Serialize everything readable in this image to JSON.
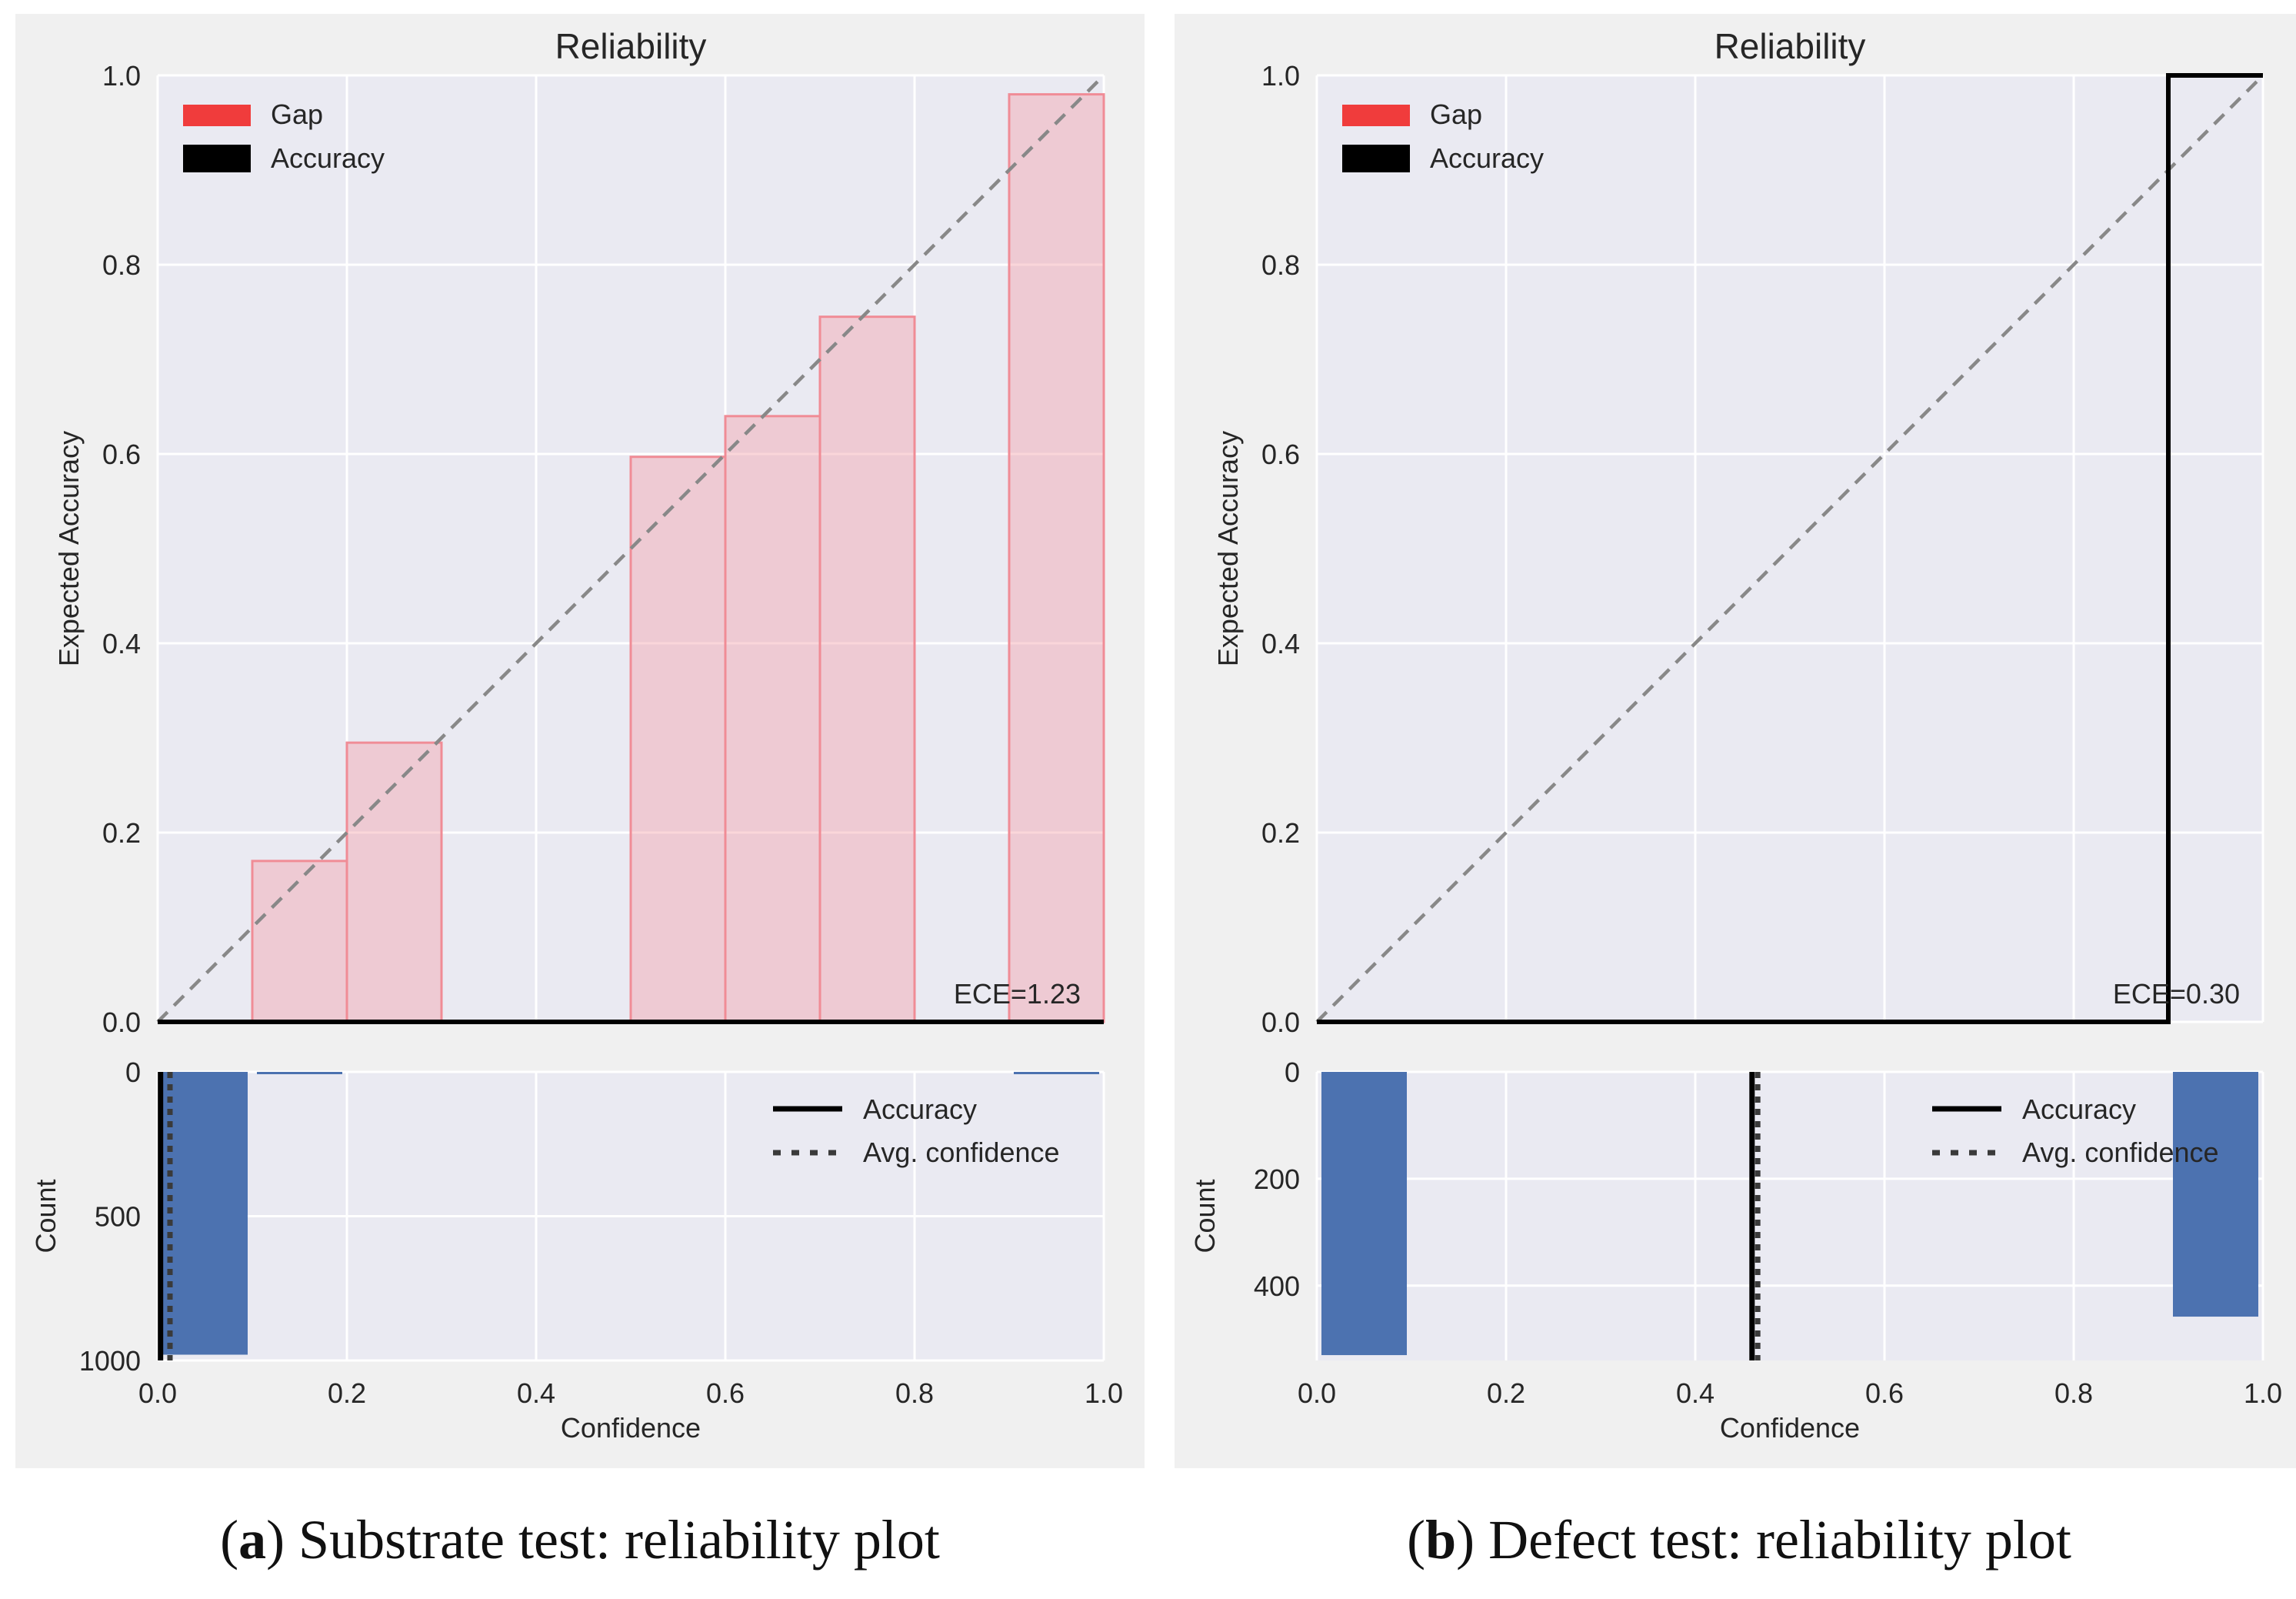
{
  "chart_data": [
    {
      "type": "bar",
      "title": "Reliability",
      "ylabel": "Expected Accuracy",
      "xlabel": "Confidence",
      "xlim": [
        0,
        1
      ],
      "ylim": [
        0,
        1
      ],
      "grid": true,
      "legend": [
        "Gap",
        "Accuracy"
      ],
      "legend_position": "top-left",
      "ece_label": "ECE=1.23",
      "yticks": [
        "0.0",
        "0.2",
        "0.4",
        "0.6",
        "0.8",
        "1.0"
      ],
      "bins": [
        0.0,
        0.1,
        0.2,
        0.3,
        0.4,
        0.5,
        0.6,
        0.7,
        0.8,
        0.9
      ],
      "bin_width": 0.1,
      "gap_values": [
        0,
        0.17,
        0.295,
        0,
        0,
        0.597,
        0.64,
        0.745,
        0,
        0.98
      ],
      "accuracy_values": [
        0,
        0,
        0,
        0,
        0,
        0,
        0,
        0,
        0,
        0
      ],
      "hist": {
        "ylabel": "Count",
        "inverted": true,
        "ylim": [
          0,
          1000
        ],
        "yticks": [
          "0",
          "500",
          "1000"
        ],
        "counts": [
          980,
          8,
          0,
          0,
          0,
          0,
          0,
          0,
          0,
          8
        ],
        "accuracy_line": 0.003,
        "avg_confidence_line": 0.013,
        "legend": [
          "Accuracy",
          "Avg. confidence"
        ],
        "legend_position": "top-right"
      },
      "xticks": [
        "0.0",
        "0.2",
        "0.4",
        "0.6",
        "0.8",
        "1.0"
      ]
    },
    {
      "type": "bar",
      "title": "Reliability",
      "ylabel": "Expected Accuracy",
      "xlabel": "Confidence",
      "xlim": [
        0,
        1
      ],
      "ylim": [
        0,
        1
      ],
      "grid": true,
      "legend": [
        "Gap",
        "Accuracy"
      ],
      "legend_position": "top-left",
      "ece_label": "ECE=0.30",
      "yticks": [
        "0.0",
        "0.2",
        "0.4",
        "0.6",
        "0.8",
        "1.0"
      ],
      "bins": [
        0.0,
        0.1,
        0.2,
        0.3,
        0.4,
        0.5,
        0.6,
        0.7,
        0.8,
        0.9
      ],
      "bin_width": 0.1,
      "gap_values": [
        0,
        0,
        0,
        0,
        0,
        0,
        0,
        0,
        0,
        0
      ],
      "accuracy_values": [
        0,
        0,
        0,
        0,
        0,
        0,
        0,
        0,
        0,
        1.0
      ],
      "hist": {
        "ylabel": "Count",
        "inverted": true,
        "ylim": [
          0,
          540
        ],
        "yticks": [
          "0",
          "200",
          "400"
        ],
        "counts": [
          530,
          0,
          0,
          0,
          0,
          0,
          0,
          0,
          0,
          458
        ],
        "accuracy_line": 0.46,
        "avg_confidence_line": 0.466,
        "legend": [
          "Accuracy",
          "Avg. confidence"
        ],
        "legend_position": "top-right"
      },
      "xticks": [
        "0.0",
        "0.2",
        "0.4",
        "0.6",
        "0.8",
        "1.0"
      ]
    }
  ],
  "captions": [
    {
      "letter": "a",
      "text": " Substrate test: reliability plot"
    },
    {
      "letter": "b",
      "text": " Defect test: reliability plot"
    }
  ],
  "colors": {
    "axes_bg": "#eaeaf2",
    "panel_bg": "#f0f0f0",
    "gap_fill": "#f4a3ad",
    "gap_edge": "#f08c96",
    "legend_gap": "#f03c3c",
    "hist_bar": "#4c72b0",
    "diagonal": "#888888",
    "accuracy": "#000000"
  }
}
